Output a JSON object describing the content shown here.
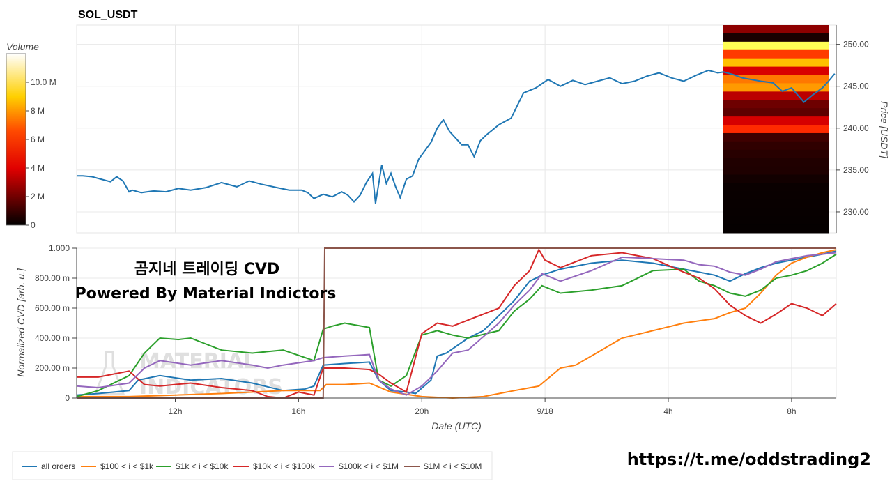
{
  "chart_data": [
    {
      "type": "line",
      "title": "SOL_USDT",
      "ylabel": "Price [USDT]",
      "ylim": [
        227.5,
        252.3
      ],
      "yticks": [
        230,
        235,
        240,
        245,
        250
      ],
      "yticklabels": [
        "230.00",
        "235.00",
        "240.00",
        "245.00",
        "250.00"
      ],
      "grid": true,
      "series": [
        {
          "color": "#1f77b4",
          "x": [
            8.3,
            8.5,
            8.8,
            9.1,
            9.4,
            9.6,
            9.8,
            10.0,
            10.1,
            10.4,
            10.8,
            11.2,
            11.6,
            12.0,
            12.5,
            13.0,
            13.5,
            13.9,
            14.3,
            14.8,
            15.2,
            15.6,
            15.8,
            16.0,
            16.3,
            16.6,
            16.9,
            17.1,
            17.3,
            17.5,
            17.7,
            17.9,
            18.0,
            18.2,
            18.35,
            18.5,
            18.65,
            18.8,
            19.0,
            19.2,
            19.4,
            19.6,
            19.8,
            20.0,
            20.2,
            20.4,
            20.6,
            20.8,
            21.0,
            21.2,
            21.4,
            21.6,
            21.8,
            22.0,
            22.4,
            22.8,
            23.2,
            23.6,
            24.0,
            24.4,
            24.8,
            25.2,
            25.6,
            26.0,
            26.4,
            26.8,
            27.2,
            27.6,
            28.0,
            28.4,
            28.8,
            29.1,
            29.3,
            29.6,
            29.9,
            30.2,
            30.5,
            30.9,
            31.2,
            31.5,
            31.9,
            32.2,
            32.5,
            32.7,
            32.9
          ],
          "y": [
            234.3,
            234.3,
            234.2,
            233.9,
            233.6,
            234.2,
            233.7,
            232.4,
            232.6,
            232.3,
            232.5,
            232.4,
            232.8,
            232.6,
            232.9,
            233.5,
            233.0,
            233.7,
            233.3,
            232.9,
            232.6,
            232.6,
            232.3,
            231.6,
            232.1,
            231.8,
            232.4,
            232.0,
            231.2,
            232.0,
            233.5,
            234.6,
            231.0,
            235.6,
            233.4,
            234.6,
            233.0,
            231.7,
            233.9,
            234.3,
            236.3,
            237.3,
            238.3,
            240.0,
            241.0,
            239.6,
            238.8,
            238.0,
            238.0,
            236.6,
            238.5,
            239.2,
            239.8,
            240.4,
            241.2,
            244.2,
            244.8,
            245.8,
            245.0,
            245.7,
            245.2,
            245.6,
            246.0,
            245.3,
            245.6,
            246.2,
            246.6,
            246.0,
            245.6,
            246.3,
            246.9,
            246.6,
            246.7,
            246.4,
            246.0,
            245.8,
            245.6,
            245.4,
            244.4,
            244.8,
            243.1,
            244.0,
            244.8,
            245.6,
            246.5
          ]
        }
      ],
      "colorbar": {
        "label": "Volume",
        "ticks": [
          0,
          2,
          4,
          6,
          8,
          10
        ],
        "ticklabels": [
          "0",
          "2 M",
          "4 M",
          "6 M",
          "8 M",
          "10.0 M"
        ],
        "range": [
          0,
          12
        ],
        "colormap": "hot"
      },
      "heatmap_column_colors": [
        "#8e0000",
        "#1a0000",
        "#ffff55",
        "#ff3a00",
        "#ffc000",
        "#d80000",
        "#ff7800",
        "#ff9a00",
        "#bb0000",
        "#6e0000",
        "#5e0000",
        "#d60000",
        "#ff2a00",
        "#3f0000",
        "#300000",
        "#280000",
        "#200000",
        "#1e0000",
        "#120000",
        "#0a0000",
        "#090000",
        "#080000",
        "#070000",
        "#060000",
        "#050000"
      ]
    },
    {
      "type": "line",
      "xlabel": "Date (UTC)",
      "ylabel": "Normalized CVD [arb. u.]",
      "ylim": [
        0,
        1
      ],
      "yticks": [
        0,
        0.2,
        0.4,
        0.6,
        0.8,
        1.0
      ],
      "yticklabels": [
        "0",
        "200.00 m",
        "400.00 m",
        "600.00 m",
        "800.00 m",
        "1.000"
      ],
      "xlim": [
        8.3,
        32.95
      ],
      "xticks": [
        11.5,
        15.5,
        19.5,
        23.5,
        27.5,
        31.5
      ],
      "xticklabels": [
        "12h",
        "16h",
        "20h",
        "9/18",
        "4h",
        "8h"
      ],
      "grid": true,
      "legend_position": "bottom-left",
      "series": [
        {
          "name": "all orders",
          "color": "#1f77b4",
          "x": [
            8.3,
            9.0,
            10.0,
            10.3,
            11.0,
            12.0,
            13.0,
            14.0,
            15.0,
            15.7,
            16.0,
            16.3,
            17.0,
            17.8,
            18.1,
            18.5,
            19.0,
            19.3,
            19.8,
            20.0,
            20.3,
            21.0,
            21.5,
            22.0,
            22.5,
            23.0,
            23.4,
            24.0,
            25.0,
            26.0,
            27.0,
            28.0,
            28.5,
            29.0,
            29.5,
            30.0,
            30.5,
            31.0,
            31.5,
            32.0,
            32.5,
            32.95
          ],
          "y": [
            0.02,
            0.03,
            0.05,
            0.12,
            0.15,
            0.12,
            0.13,
            0.1,
            0.05,
            0.06,
            0.08,
            0.22,
            0.23,
            0.24,
            0.12,
            0.05,
            0.04,
            0.03,
            0.12,
            0.28,
            0.3,
            0.4,
            0.45,
            0.55,
            0.65,
            0.78,
            0.82,
            0.86,
            0.9,
            0.92,
            0.9,
            0.86,
            0.84,
            0.82,
            0.78,
            0.83,
            0.87,
            0.9,
            0.92,
            0.94,
            0.96,
            0.98
          ]
        },
        {
          "name": "$100 < i < $1k",
          "color": "#ff7f0e",
          "x": [
            8.3,
            10.0,
            11.5,
            13.0,
            15.0,
            16.2,
            16.4,
            17.0,
            17.8,
            18.5,
            19.5,
            20.5,
            21.5,
            22.5,
            23.3,
            24.0,
            24.5,
            25.0,
            26.0,
            27.0,
            28.0,
            29.0,
            29.5,
            30.0,
            30.5,
            31.0,
            31.5,
            32.0,
            32.5,
            32.95
          ],
          "y": [
            0.01,
            0.01,
            0.02,
            0.03,
            0.05,
            0.05,
            0.09,
            0.09,
            0.1,
            0.04,
            0.01,
            0.0,
            0.01,
            0.05,
            0.08,
            0.2,
            0.22,
            0.28,
            0.4,
            0.45,
            0.5,
            0.53,
            0.57,
            0.6,
            0.7,
            0.82,
            0.9,
            0.94,
            0.97,
            0.99
          ]
        },
        {
          "name": "$1k < i < $10k",
          "color": "#2ca02c",
          "x": [
            8.3,
            9.0,
            10.0,
            10.5,
            11.0,
            11.6,
            12.0,
            13.0,
            14.0,
            15.0,
            16.0,
            16.3,
            16.6,
            17.0,
            17.8,
            18.1,
            18.5,
            19.0,
            19.5,
            20.0,
            20.5,
            21.0,
            22.0,
            22.5,
            23.0,
            23.4,
            24.0,
            25.0,
            26.0,
            27.0,
            28.0,
            28.5,
            29.0,
            29.5,
            30.0,
            30.5,
            31.0,
            31.5,
            32.0,
            32.5,
            32.95
          ],
          "y": [
            0.01,
            0.05,
            0.15,
            0.3,
            0.4,
            0.39,
            0.4,
            0.32,
            0.3,
            0.32,
            0.25,
            0.46,
            0.48,
            0.5,
            0.47,
            0.12,
            0.08,
            0.15,
            0.42,
            0.45,
            0.42,
            0.4,
            0.45,
            0.58,
            0.66,
            0.75,
            0.7,
            0.72,
            0.75,
            0.85,
            0.86,
            0.78,
            0.75,
            0.7,
            0.68,
            0.72,
            0.8,
            0.82,
            0.85,
            0.9,
            0.96
          ]
        },
        {
          "name": "$10k < i < $100k",
          "color": "#d62728",
          "x": [
            8.3,
            9.0,
            10.0,
            10.5,
            11.0,
            12.0,
            13.0,
            14.0,
            14.5,
            15.0,
            15.5,
            16.0,
            16.3,
            17.0,
            17.8,
            18.1,
            18.5,
            19.0,
            19.5,
            20.0,
            20.5,
            21.0,
            22.0,
            22.5,
            23.0,
            23.3,
            23.5,
            24.0,
            25.0,
            26.0,
            27.0,
            28.0,
            28.5,
            29.0,
            29.5,
            30.0,
            30.5,
            31.0,
            31.5,
            32.0,
            32.5,
            32.95
          ],
          "y": [
            0.14,
            0.14,
            0.18,
            0.09,
            0.08,
            0.1,
            0.07,
            0.05,
            0.01,
            0.0,
            0.04,
            0.02,
            0.2,
            0.2,
            0.19,
            0.16,
            0.1,
            0.04,
            0.43,
            0.5,
            0.48,
            0.52,
            0.6,
            0.75,
            0.85,
            0.99,
            0.92,
            0.87,
            0.95,
            0.97,
            0.93,
            0.84,
            0.8,
            0.73,
            0.62,
            0.55,
            0.5,
            0.56,
            0.63,
            0.6,
            0.55,
            0.63
          ]
        },
        {
          "name": "$100k < i < $1M",
          "color": "#9467bd",
          "x": [
            8.3,
            9.0,
            10.0,
            10.5,
            11.0,
            12.0,
            13.0,
            14.0,
            14.5,
            15.0,
            16.0,
            16.3,
            17.0,
            17.8,
            18.1,
            18.5,
            19.0,
            19.5,
            20.0,
            20.5,
            21.0,
            22.0,
            22.5,
            23.0,
            23.4,
            24.0,
            25.0,
            26.0,
            27.0,
            28.0,
            28.5,
            29.0,
            29.5,
            30.0,
            30.5,
            31.0,
            31.5,
            32.0,
            32.5,
            32.95
          ],
          "y": [
            0.08,
            0.07,
            0.1,
            0.2,
            0.25,
            0.22,
            0.25,
            0.22,
            0.2,
            0.22,
            0.25,
            0.27,
            0.28,
            0.29,
            0.12,
            0.06,
            0.02,
            0.08,
            0.18,
            0.3,
            0.32,
            0.5,
            0.62,
            0.72,
            0.83,
            0.78,
            0.85,
            0.94,
            0.93,
            0.92,
            0.89,
            0.88,
            0.84,
            0.82,
            0.86,
            0.91,
            0.93,
            0.95,
            0.96,
            0.97
          ]
        },
        {
          "name": "$1M < i < $10M",
          "color": "#8c564b",
          "x": [
            8.3,
            16.0,
            16.3,
            16.35,
            32.95
          ],
          "y": [
            0.0,
            0.0,
            0.0,
            1.0,
            1.0
          ]
        }
      ]
    }
  ],
  "overlay": {
    "korean_title": "곰지네 트레이딩 CVD",
    "powered_by": "Powered By Material Indictors",
    "url": "https://t.me/oddstrading2"
  }
}
